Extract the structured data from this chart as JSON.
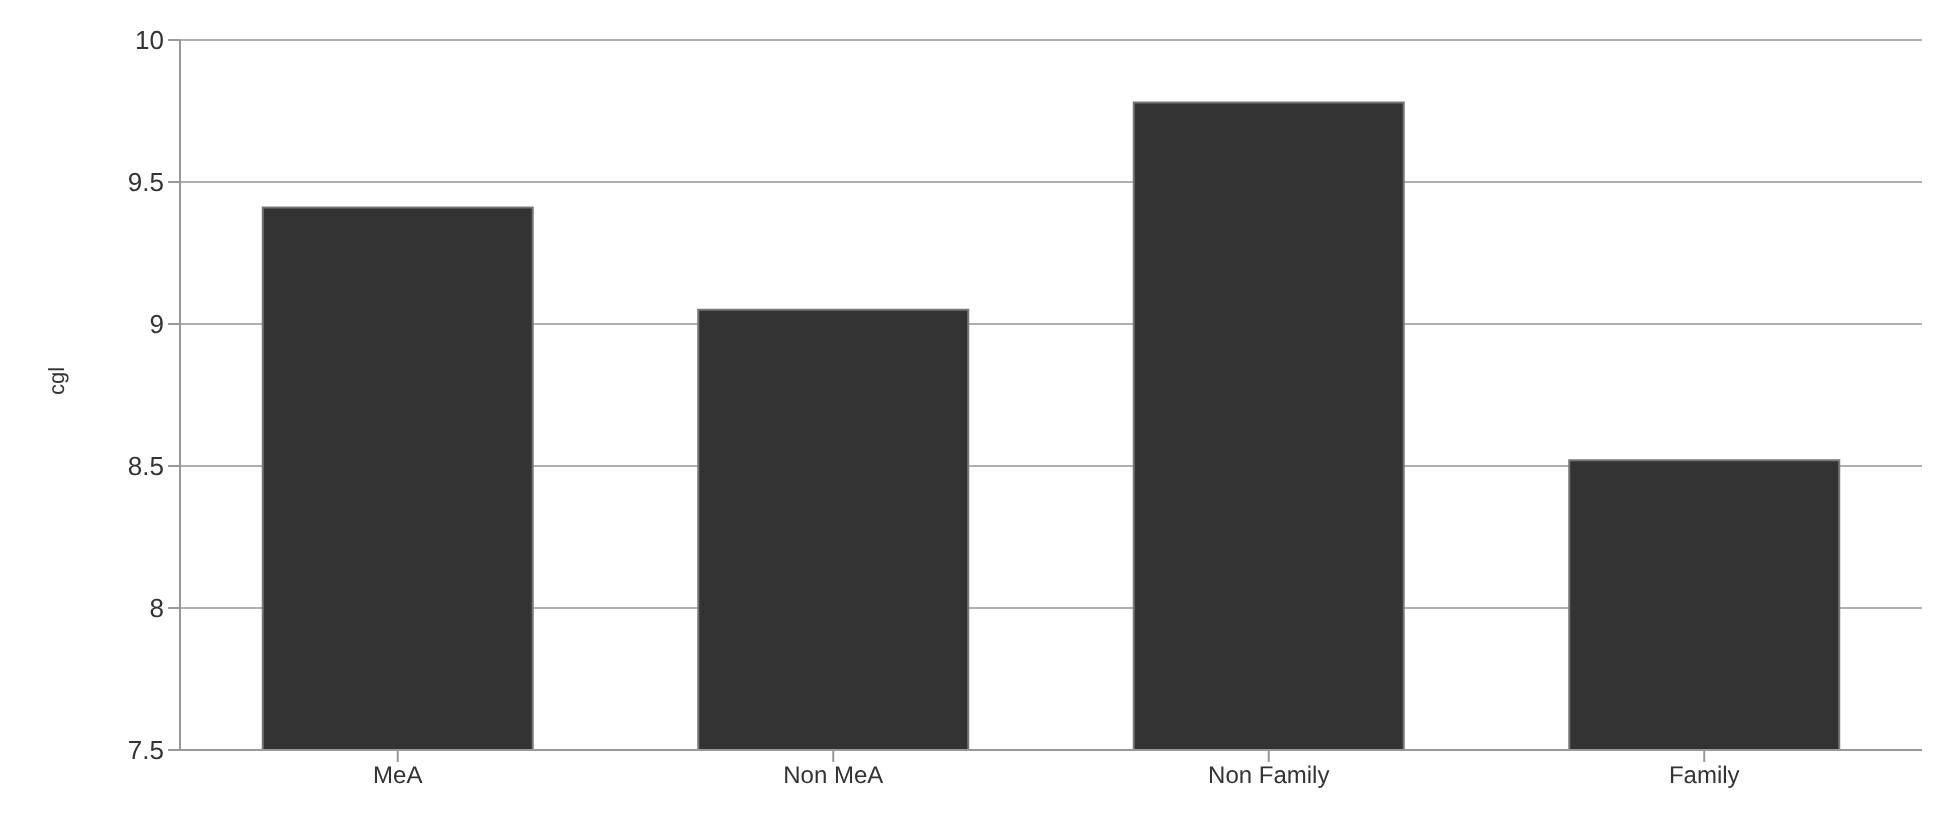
{
  "chart_data": {
    "type": "bar",
    "ylabel": "cgl",
    "categories": [
      "MeA",
      "Non MeA",
      "Non Family",
      "Family"
    ],
    "values": [
      9.41,
      9.05,
      9.78,
      8.52
    ],
    "color": "#333333",
    "ylim": [
      7.5,
      10
    ],
    "yticks": [
      7.5,
      8,
      8.5,
      9,
      9.5,
      10
    ],
    "grid": "y"
  }
}
